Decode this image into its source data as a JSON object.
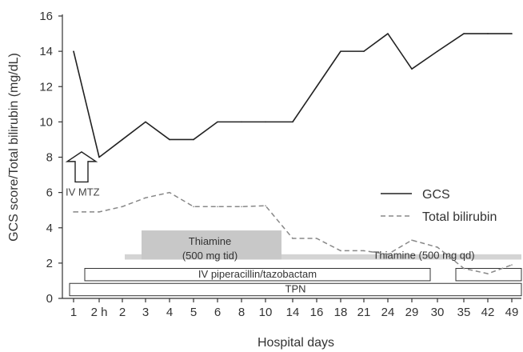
{
  "chart_data": {
    "type": "line",
    "xlabel": "Hospital days",
    "ylabel": "GCS score/Total bilirubin (mg/dL)",
    "ylim": [
      0,
      16
    ],
    "yticks": [
      0,
      2,
      4,
      6,
      8,
      10,
      12,
      14,
      16
    ],
    "categories": [
      "1",
      "2 h",
      "2",
      "3",
      "4",
      "5",
      "6",
      "8",
      "10",
      "14",
      "16",
      "18",
      "21",
      "24",
      "29",
      "30",
      "35",
      "42",
      "49"
    ],
    "grid": false,
    "legend_position": "right",
    "series": [
      {
        "name": "GCS",
        "style": "solid",
        "color": "#222222",
        "points": [
          {
            "x": "1",
            "y": 14
          },
          {
            "x": "2 h",
            "y": 8
          },
          {
            "x": "2",
            "y": 9
          },
          {
            "x": "3",
            "y": 10
          },
          {
            "x": "4",
            "y": 9
          },
          {
            "x": "5",
            "y": 9
          },
          {
            "x": "6",
            "y": 10
          },
          {
            "x": "8",
            "y": 10
          },
          {
            "x": "10",
            "y": 10
          },
          {
            "x": "14",
            "y": 10
          },
          {
            "x": "16",
            "y": 12
          },
          {
            "x": "18",
            "y": 14
          },
          {
            "x": "21",
            "y": 14
          },
          {
            "x": "24",
            "y": 15
          },
          {
            "x": "29",
            "y": 13
          },
          {
            "x": "30",
            "y": 14
          },
          {
            "x": "35",
            "y": 15
          },
          {
            "x": "42",
            "y": 15
          },
          {
            "x": "49",
            "y": 15
          }
        ]
      },
      {
        "name": "Total bilirubin",
        "style": "dashed",
        "color": "#888888",
        "points": [
          {
            "x": "1",
            "y": 4.9
          },
          {
            "x": "2 h",
            "y": 4.9
          },
          {
            "x": "2",
            "y": 5.2
          },
          {
            "x": "3",
            "y": 5.7
          },
          {
            "x": "4",
            "y": 6.0
          },
          {
            "x": "5",
            "y": 5.2
          },
          {
            "x": "6",
            "y": 5.2
          },
          {
            "x": "8",
            "y": 5.2
          },
          {
            "x": "10",
            "y": 5.25
          },
          {
            "x": "14",
            "y": 3.4
          },
          {
            "x": "16",
            "y": 3.4
          },
          {
            "x": "18",
            "y": 2.7
          },
          {
            "x": "21",
            "y": 2.7
          },
          {
            "x": "24",
            "y": 2.5
          },
          {
            "x": "29",
            "y": 3.3
          },
          {
            "x": "30",
            "y": 2.9
          },
          {
            "x": "35",
            "y": 1.7
          },
          {
            "x": "42",
            "y": 1.4
          },
          {
            "x": "49",
            "y": 1.9
          }
        ]
      }
    ],
    "annotations": {
      "arrow": {
        "label": "IV MTZ",
        "at_x": "1",
        "from_y": 6.6,
        "to_y": 8.3
      },
      "bars": [
        {
          "label": "TPN",
          "start_x": "1",
          "end_x": "49",
          "y_low": 0.15,
          "y_high": 0.85,
          "style": "outline"
        },
        {
          "label": "IV piperacillin/tazobactam",
          "start_x": "2 h",
          "end_x": "30",
          "y_low": 1.0,
          "y_high": 1.7,
          "style": "outline"
        },
        {
          "label": "IV piperacillin/tazobactam",
          "start_x": "35",
          "end_x": "49",
          "y_low": 1.0,
          "y_high": 1.7,
          "style": "outline"
        },
        {
          "label": "Thiamine (500 mg qd)",
          "start_x": "2",
          "end_x": "49",
          "y_low": 2.2,
          "y_high": 2.5,
          "style": "light-fill"
        },
        {
          "label": "Thiamine",
          "sublabel": "(500 mg tid)",
          "start_x": "3",
          "end_x": "10",
          "y_low": 2.2,
          "y_high": 3.85,
          "style": "fill"
        }
      ]
    },
    "colors": {
      "axis": "#333333",
      "gcs": "#222222",
      "bilirubin": "#888888",
      "thiamine_tid": "#c8c8c8",
      "thiamine_qd": "#d4d4d4"
    }
  }
}
